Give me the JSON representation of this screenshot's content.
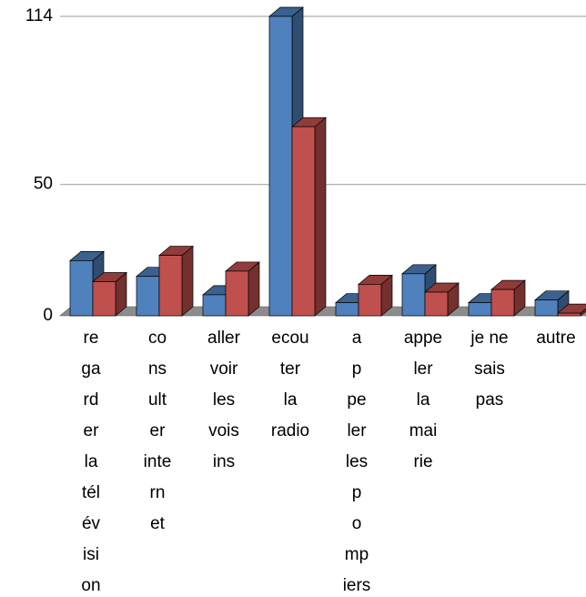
{
  "chart_data": {
    "type": "bar3d",
    "categories": [
      [
        "re",
        "ga",
        "rd",
        "er",
        "la",
        "tél",
        "év",
        "isi",
        "on"
      ],
      [
        "co",
        "ns",
        "ult",
        "er",
        "inte",
        "rn",
        "et"
      ],
      [
        "aller",
        "voir",
        "les",
        "vois",
        "ins"
      ],
      [
        "ecou",
        "ter",
        "la",
        "radio"
      ],
      [
        "a",
        "p",
        "pe",
        "ler",
        "les",
        "p",
        "o",
        "mp",
        "iers"
      ],
      [
        "appe",
        "ler",
        "la",
        "mai",
        "rie"
      ],
      [
        "je ne",
        "sais",
        "pas"
      ],
      [
        "autre"
      ]
    ],
    "series": [
      {
        "color": "#4f81bd",
        "values": [
          21,
          15,
          8,
          114,
          5,
          16,
          5,
          6
        ]
      },
      {
        "color": "#c0504d",
        "values": [
          13,
          23,
          17,
          72,
          12,
          9,
          10,
          1
        ]
      }
    ],
    "ylim": [
      0,
      114
    ],
    "yticks": [
      0,
      50,
      114
    ],
    "grid": true
  }
}
